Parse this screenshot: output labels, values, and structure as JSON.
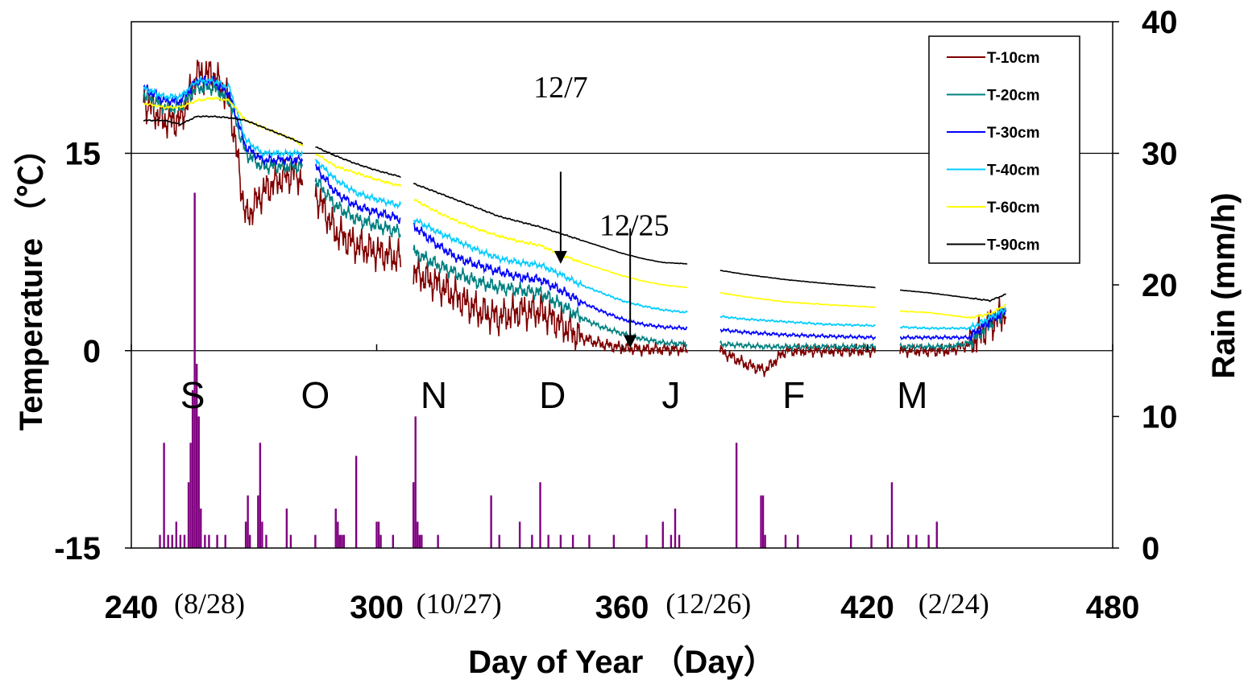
{
  "chart_data": {
    "type": "line",
    "title": "",
    "xlabel": "Day of Year （Day）",
    "ylabel_left": "Temperature （℃）",
    "ylabel_right": "Rain (mm/h)",
    "xlim": [
      240,
      480
    ],
    "ylim_left": [
      -15,
      0,
      15
    ],
    "ylim_left_range": [
      -15,
      25
    ],
    "ylim_right": [
      0,
      40
    ],
    "x_ticks": [
      "240",
      "300",
      "360",
      "420",
      "480"
    ],
    "x_tick_values": [
      240,
      300,
      360,
      420,
      480
    ],
    "left_ticks": [
      "-15",
      "0",
      "15"
    ],
    "left_tick_values": [
      -15,
      0,
      15
    ],
    "right_ticks": [
      "0",
      "10",
      "20",
      "30",
      "40"
    ],
    "right_tick_values": [
      0,
      10,
      20,
      30,
      40
    ],
    "date_labels": [
      {
        "x": 254,
        "text": "(8/28)"
      },
      {
        "x": 315,
        "text": "(10/27)"
      },
      {
        "x": 376,
        "text": "(12/26)"
      },
      {
        "x": 436,
        "text": "(2/24)"
      }
    ],
    "month_labels": [
      {
        "x": 255,
        "text": "S"
      },
      {
        "x": 285,
        "text": "O"
      },
      {
        "x": 314,
        "text": "N"
      },
      {
        "x": 343,
        "text": "D"
      },
      {
        "x": 372,
        "text": "J"
      },
      {
        "x": 402,
        "text": "F"
      },
      {
        "x": 431,
        "text": "M"
      }
    ],
    "annotations": [
      {
        "text": "12/7",
        "x": 345,
        "y": 20,
        "arrow_from": [
          345,
          13.6
        ],
        "arrow_to": [
          345,
          6.6
        ]
      },
      {
        "text": "12/25",
        "x": 363,
        "y": 9.5,
        "arrow_from": [
          362,
          9.3
        ],
        "arrow_to": [
          362,
          0.2
        ]
      }
    ],
    "grid": "horizontal reference lines at 0 and 15 (left axis)",
    "legend_position": "top-right",
    "segments": [
      [
        243,
        282
      ],
      [
        285,
        306
      ],
      [
        309,
        376
      ],
      [
        384,
        422
      ],
      [
        428,
        454
      ]
    ],
    "series": [
      {
        "name": "T-10cm",
        "color": "#800000",
        "x": [
          243,
          248,
          252,
          256,
          260,
          264,
          268,
          272,
          276,
          280,
          282,
          285,
          290,
          295,
          300,
          306,
          309,
          315,
          320,
          325,
          330,
          335,
          340,
          345,
          350,
          355,
          360,
          365,
          370,
          376,
          384,
          390,
          395,
          400,
          410,
          422,
          428,
          435,
          440,
          445,
          450,
          454
        ],
        "y": [
          19,
          17.5,
          17.5,
          21,
          21,
          19,
          10,
          12,
          13,
          13.5,
          13,
          12,
          9,
          8,
          7.5,
          7,
          6,
          5,
          4,
          3,
          2.5,
          3,
          3,
          2,
          1,
          0.5,
          0.2,
          0.1,
          0.1,
          0.1,
          0,
          -1,
          -1.5,
          0,
          0,
          0,
          0,
          0,
          0,
          0.5,
          2,
          3
        ]
      },
      {
        "name": "T-20cm",
        "color": "#008080",
        "x": [
          243,
          248,
          252,
          256,
          260,
          264,
          268,
          272,
          276,
          280,
          282,
          285,
          290,
          295,
          300,
          306,
          309,
          315,
          320,
          325,
          330,
          335,
          340,
          345,
          350,
          355,
          360,
          365,
          370,
          376,
          384,
          390,
          395,
          400,
          410,
          422,
          428,
          435,
          440,
          445,
          450,
          454
        ],
        "y": [
          19.5,
          18.5,
          18.5,
          20,
          20,
          19,
          15,
          14,
          14,
          14,
          14,
          13,
          11,
          10,
          9.5,
          9,
          7.5,
          6.5,
          5.8,
          5.2,
          4.8,
          4.6,
          4.4,
          3.5,
          2.5,
          1.8,
          1.3,
          0.9,
          0.6,
          0.5,
          0.5,
          0.4,
          0.3,
          0.3,
          0.3,
          0.3,
          0.3,
          0.3,
          0.3,
          0.6,
          2,
          3
        ]
      },
      {
        "name": "T-30cm",
        "color": "#0000FF",
        "x": [
          243,
          248,
          252,
          256,
          260,
          264,
          268,
          272,
          276,
          280,
          282,
          285,
          290,
          295,
          300,
          306,
          309,
          315,
          320,
          325,
          330,
          335,
          340,
          345,
          350,
          355,
          360,
          365,
          370,
          376,
          384,
          390,
          395,
          400,
          410,
          422,
          428,
          435,
          440,
          445,
          450,
          454
        ],
        "y": [
          20,
          19,
          19,
          20.5,
          20.5,
          19.5,
          15.5,
          14.5,
          14.5,
          14.5,
          14.5,
          14,
          12,
          11,
          10.5,
          10,
          9.5,
          8,
          7,
          6.5,
          6,
          5.6,
          5.4,
          4.6,
          3.7,
          3,
          2.4,
          2,
          1.8,
          1.7,
          1.6,
          1.4,
          1.3,
          1.2,
          1.1,
          1,
          1,
          1,
          1,
          1,
          2.3,
          3
        ]
      },
      {
        "name": "T-40cm",
        "color": "#00CCFF",
        "x": [
          243,
          248,
          252,
          256,
          260,
          264,
          268,
          272,
          276,
          280,
          282,
          285,
          290,
          295,
          300,
          306,
          309,
          315,
          320,
          325,
          330,
          335,
          340,
          345,
          350,
          355,
          360,
          365,
          370,
          376,
          384,
          390,
          395,
          400,
          410,
          422,
          428,
          435,
          440,
          445,
          450,
          454
        ],
        "y": [
          20,
          19.3,
          19.3,
          20.5,
          20.5,
          20,
          16,
          15,
          15,
          15,
          15,
          14.5,
          13,
          12,
          11.5,
          11,
          10,
          9,
          8.3,
          7.6,
          7,
          6.7,
          6.5,
          5.8,
          5,
          4.4,
          3.8,
          3.4,
          3.1,
          2.9,
          2.6,
          2.4,
          2.3,
          2.2,
          2,
          1.9,
          1.8,
          1.7,
          1.7,
          1.7,
          2.5,
          3.2
        ]
      },
      {
        "name": "T-60cm",
        "color": "#FFFF00",
        "x": [
          243,
          248,
          252,
          256,
          260,
          264,
          268,
          272,
          276,
          280,
          282,
          285,
          290,
          295,
          300,
          306,
          309,
          315,
          320,
          325,
          330,
          335,
          340,
          345,
          350,
          355,
          360,
          365,
          370,
          376,
          384,
          390,
          395,
          400,
          410,
          422,
          428,
          435,
          440,
          445,
          450,
          454
        ],
        "y": [
          18.8,
          18.5,
          18.5,
          19,
          19.2,
          19,
          17.5,
          17,
          16.5,
          16,
          15.5,
          15,
          14,
          13.5,
          13,
          12.5,
          11.5,
          10.5,
          9.8,
          9.2,
          8.7,
          8.3,
          8,
          7.3,
          6.7,
          6.2,
          5.7,
          5.3,
          5,
          4.8,
          4.4,
          4.1,
          3.9,
          3.7,
          3.5,
          3.3,
          3,
          2.9,
          2.7,
          2.5,
          2.8,
          3.5
        ]
      },
      {
        "name": "T-90cm",
        "color": "#000000",
        "x": [
          243,
          248,
          252,
          256,
          260,
          264,
          268,
          272,
          276,
          280,
          282,
          285,
          290,
          295,
          300,
          306,
          309,
          315,
          320,
          325,
          330,
          335,
          340,
          345,
          350,
          355,
          360,
          365,
          370,
          376,
          384,
          390,
          395,
          400,
          410,
          422,
          428,
          435,
          440,
          445,
          450,
          454
        ],
        "y": [
          17.5,
          17.5,
          17.2,
          17.8,
          17.8,
          17.7,
          17.5,
          17,
          16.5,
          16,
          15.7,
          15.5,
          14.8,
          14.2,
          13.7,
          13.2,
          12.7,
          12,
          11.4,
          10.8,
          10.2,
          9.8,
          9.4,
          8.9,
          8.4,
          7.9,
          7.4,
          7,
          6.7,
          6.6,
          6.1,
          5.8,
          5.6,
          5.4,
          5.1,
          4.8,
          4.6,
          4.4,
          4.2,
          4,
          3.8,
          4.3
        ]
      }
    ],
    "rain": {
      "name": "Rain",
      "color": "#800080",
      "axis": "right",
      "x": [
        247,
        248,
        249,
        250,
        251,
        252,
        253,
        254,
        254.5,
        255,
        255.5,
        256,
        256.5,
        257,
        258,
        259,
        261,
        263,
        268,
        268.5,
        269,
        271,
        271.5,
        272,
        273,
        278,
        279,
        285,
        290,
        290.5,
        291,
        291.5,
        292,
        295,
        300,
        300.5,
        301,
        304,
        309,
        309.5,
        310,
        310.5,
        311,
        315,
        328,
        330,
        335,
        338,
        340,
        342,
        345,
        348,
        352,
        358,
        366,
        370,
        372,
        373,
        374,
        388,
        394,
        394.5,
        395,
        400,
        403,
        416,
        421,
        425,
        426,
        430,
        432,
        435,
        437
      ],
      "y": [
        1,
        8,
        1,
        1,
        2,
        1,
        1,
        5,
        8,
        12,
        27,
        14,
        10,
        3,
        1,
        1,
        1,
        1,
        2,
        4,
        1,
        4,
        8,
        2,
        1,
        3,
        1,
        1,
        3,
        2,
        1,
        1,
        1,
        7,
        2,
        2,
        1,
        1,
        5,
        10,
        2,
        1,
        1,
        1,
        4,
        1,
        2,
        1,
        5,
        1,
        1,
        1,
        1,
        1,
        1,
        2,
        1,
        3,
        1,
        8,
        4,
        4,
        1,
        1,
        1,
        1,
        1,
        1,
        5,
        1,
        1,
        1,
        2
      ]
    }
  }
}
